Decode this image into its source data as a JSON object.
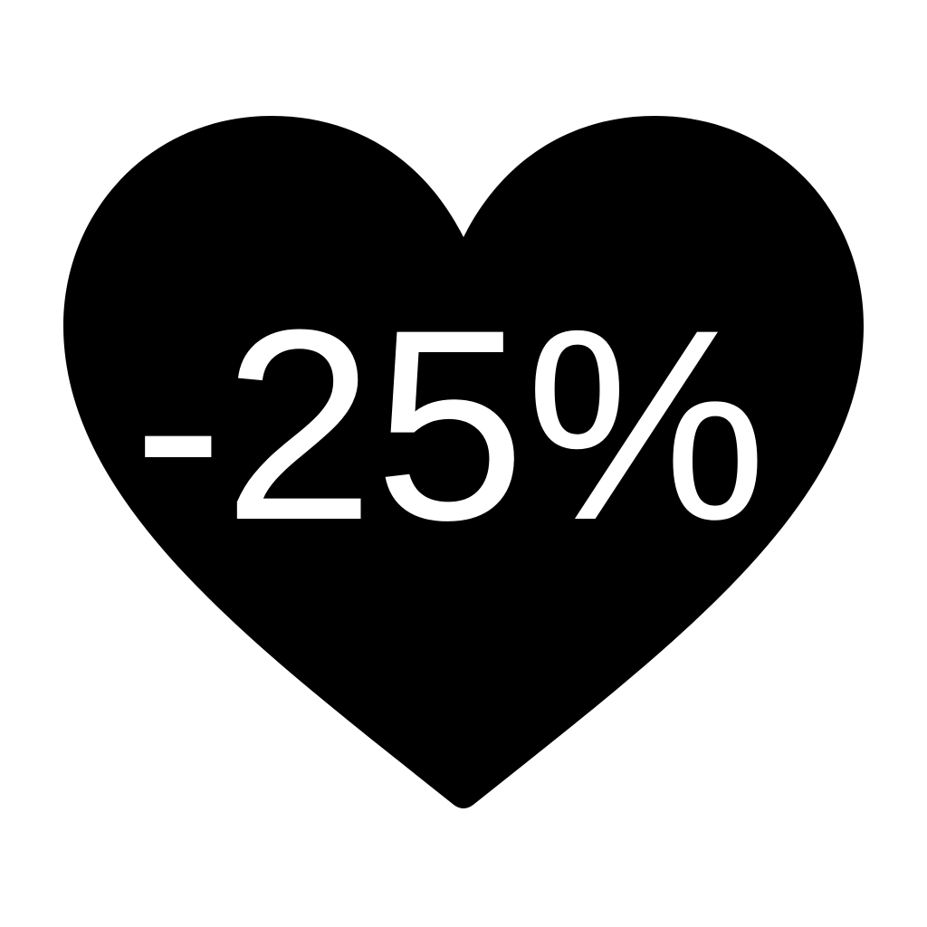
{
  "badge": {
    "shape_icon": "heart-icon",
    "text": "-25%",
    "fill_color": "#000000",
    "text_color": "#ffffff",
    "background_color": "#ffffff"
  }
}
